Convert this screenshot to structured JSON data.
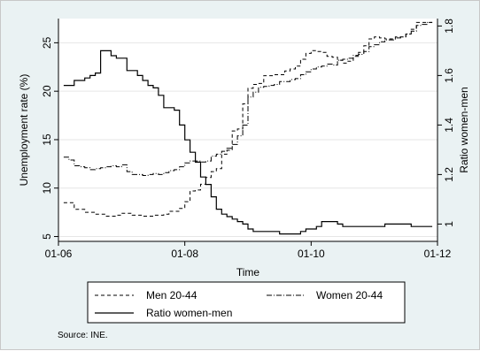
{
  "chart_data": {
    "type": "line",
    "xlabel": "Time",
    "ylabel_left": "Unemployment rate (%)",
    "ylabel_right": "Ratio women-men",
    "x_ticks": [
      "01-06",
      "01-08",
      "01-10",
      "01-12"
    ],
    "xlim": [
      "2006-01",
      "2012-01"
    ],
    "ylim_left": [
      4.5,
      27.5
    ],
    "yticks_left": [
      5,
      10,
      15,
      20,
      25
    ],
    "ylim_right": [
      0.93,
      1.83
    ],
    "yticks_right": [
      1,
      1.2,
      1.4,
      1.6,
      1.8
    ],
    "grid": "horizontal",
    "legend_position": "bottom",
    "series": [
      {
        "name": "Men 20-44",
        "axis": "left",
        "style": "dashed",
        "x": [
          "2006-02",
          "2006-03",
          "2006-04",
          "2006-05",
          "2006-06",
          "2006-07",
          "2006-08",
          "2006-09",
          "2006-10",
          "2006-11",
          "2006-12",
          "2007-01",
          "2007-02",
          "2007-03",
          "2007-04",
          "2007-05",
          "2007-06",
          "2007-07",
          "2007-08",
          "2007-09",
          "2007-10",
          "2007-11",
          "2007-12",
          "2008-01",
          "2008-02",
          "2008-03",
          "2008-04",
          "2008-05",
          "2008-06",
          "2008-07",
          "2008-08",
          "2008-09",
          "2008-10",
          "2008-11",
          "2008-12",
          "2009-01",
          "2009-02",
          "2009-03",
          "2009-04",
          "2009-05",
          "2009-06",
          "2009-07",
          "2009-08",
          "2009-09",
          "2009-10",
          "2009-11",
          "2009-12",
          "2010-01",
          "2010-02",
          "2010-03",
          "2010-04",
          "2010-05",
          "2010-06",
          "2010-07",
          "2010-08",
          "2010-09",
          "2010-10",
          "2010-11",
          "2010-12",
          "2011-01",
          "2011-02",
          "2011-03",
          "2011-04",
          "2011-05",
          "2011-06",
          "2011-07",
          "2011-08",
          "2011-09",
          "2011-10",
          "2011-11"
        ],
        "y": [
          8.5,
          8.5,
          7.8,
          7.8,
          7.5,
          7.5,
          7.3,
          7.3,
          7.1,
          7.1,
          7.2,
          7.4,
          7.4,
          7.2,
          7.2,
          7.1,
          7.1,
          7.2,
          7.2,
          7.3,
          7.6,
          7.6,
          7.9,
          8.6,
          9.7,
          9.8,
          10.4,
          11.1,
          11.7,
          12.0,
          13.5,
          13.9,
          15.9,
          16.1,
          18.7,
          20.3,
          20.7,
          20.8,
          21.6,
          21.6,
          21.7,
          21.7,
          22.1,
          22.3,
          22.6,
          23.3,
          23.9,
          24.2,
          24.1,
          24.0,
          23.6,
          23.5,
          23.2,
          22.9,
          23.1,
          23.6,
          24.0,
          24.7,
          25.4,
          25.6,
          25.5,
          25.4,
          25.4,
          25.6,
          25.6,
          25.9,
          26.4,
          27.1,
          27.1,
          27.1
        ]
      },
      {
        "name": "Women 20-44",
        "axis": "left",
        "style": "dash-dot",
        "x": [
          "2006-02",
          "2006-03",
          "2006-04",
          "2006-05",
          "2006-06",
          "2006-07",
          "2006-08",
          "2006-09",
          "2006-10",
          "2006-11",
          "2006-12",
          "2007-01",
          "2007-02",
          "2007-03",
          "2007-04",
          "2007-05",
          "2007-06",
          "2007-07",
          "2007-08",
          "2007-09",
          "2007-10",
          "2007-11",
          "2007-12",
          "2008-01",
          "2008-02",
          "2008-03",
          "2008-04",
          "2008-05",
          "2008-06",
          "2008-07",
          "2008-08",
          "2008-09",
          "2008-10",
          "2008-11",
          "2008-12",
          "2009-01",
          "2009-02",
          "2009-03",
          "2009-04",
          "2009-05",
          "2009-06",
          "2009-07",
          "2009-08",
          "2009-09",
          "2009-10",
          "2009-11",
          "2009-12",
          "2010-01",
          "2010-02",
          "2010-03",
          "2010-04",
          "2010-05",
          "2010-06",
          "2010-07",
          "2010-08",
          "2010-09",
          "2010-10",
          "2010-11",
          "2010-12",
          "2011-01",
          "2011-02",
          "2011-03",
          "2011-04",
          "2011-05",
          "2011-06",
          "2011-07",
          "2011-08",
          "2011-09",
          "2011-10",
          "2011-11"
        ],
        "y": [
          13.2,
          12.9,
          12.3,
          12.2,
          12.1,
          11.9,
          12.0,
          12.1,
          12.2,
          12.3,
          12.2,
          12.4,
          11.7,
          11.4,
          11.4,
          11.3,
          11.4,
          11.5,
          11.4,
          11.6,
          11.8,
          11.9,
          12.2,
          12.6,
          12.8,
          12.8,
          12.7,
          12.8,
          13.3,
          13.5,
          13.8,
          14.1,
          14.5,
          15.4,
          16.5,
          19.4,
          19.9,
          20.4,
          20.5,
          20.6,
          20.7,
          21.0,
          21.0,
          21.2,
          21.3,
          21.7,
          22.0,
          22.3,
          22.5,
          22.6,
          22.8,
          22.7,
          23.2,
          23.3,
          23.4,
          23.7,
          23.8,
          24.1,
          24.6,
          24.8,
          25.1,
          25.3,
          25.3,
          25.5,
          25.6,
          25.9,
          26.2,
          26.8,
          26.9,
          27.1
        ]
      },
      {
        "name": "Ratio women-men",
        "axis": "right",
        "style": "solid",
        "x": [
          "2006-02",
          "2006-03",
          "2006-04",
          "2006-05",
          "2006-06",
          "2006-07",
          "2006-08",
          "2006-09",
          "2006-10",
          "2006-11",
          "2006-12",
          "2007-01",
          "2007-02",
          "2007-03",
          "2007-04",
          "2007-05",
          "2007-06",
          "2007-07",
          "2007-08",
          "2007-09",
          "2007-10",
          "2007-11",
          "2007-12",
          "2008-01",
          "2008-02",
          "2008-03",
          "2008-04",
          "2008-05",
          "2008-06",
          "2008-07",
          "2008-08",
          "2008-09",
          "2008-10",
          "2008-11",
          "2008-12",
          "2009-01",
          "2009-02",
          "2009-03",
          "2009-04",
          "2009-05",
          "2009-06",
          "2009-07",
          "2009-08",
          "2009-09",
          "2009-10",
          "2009-11",
          "2009-12",
          "2010-01",
          "2010-02",
          "2010-03",
          "2010-04",
          "2010-05",
          "2010-06",
          "2010-07",
          "2010-08",
          "2010-09",
          "2010-10",
          "2010-11",
          "2010-12",
          "2011-01",
          "2011-02",
          "2011-03",
          "2011-04",
          "2011-05",
          "2011-06",
          "2011-07",
          "2011-08",
          "2011-09",
          "2011-10",
          "2011-11"
        ],
        "y": [
          1.56,
          1.56,
          1.58,
          1.58,
          1.59,
          1.6,
          1.61,
          1.7,
          1.7,
          1.68,
          1.67,
          1.67,
          1.62,
          1.62,
          1.6,
          1.58,
          1.56,
          1.55,
          1.52,
          1.47,
          1.47,
          1.46,
          1.4,
          1.34,
          1.29,
          1.25,
          1.19,
          1.16,
          1.11,
          1.06,
          1.04,
          1.03,
          1.02,
          1.01,
          1.0,
          0.98,
          0.97,
          0.97,
          0.97,
          0.97,
          0.97,
          0.96,
          0.96,
          0.96,
          0.96,
          0.97,
          0.98,
          0.98,
          0.99,
          1.01,
          1.01,
          1.01,
          1.0,
          0.99,
          0.99,
          0.99,
          0.99,
          0.99,
          0.99,
          0.99,
          0.99,
          1.0,
          1.0,
          1.0,
          1.0,
          1.0,
          0.99,
          0.99,
          0.99,
          0.99
        ]
      }
    ],
    "source": "Source: INE."
  }
}
